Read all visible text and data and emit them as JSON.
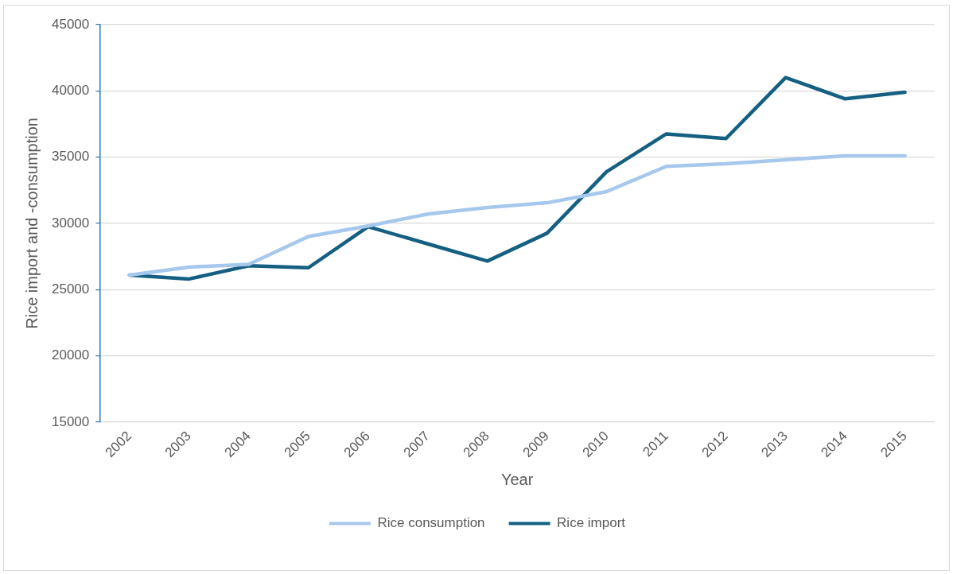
{
  "chart_data": {
    "type": "line",
    "xlabel": "Year",
    "ylabel": "Rice import and -consumption",
    "categories": [
      "2002",
      "2003",
      "2004",
      "2005",
      "2006",
      "2007",
      "2008",
      "2009",
      "2010",
      "2011",
      "2012",
      "2013",
      "2014",
      "2015"
    ],
    "series": [
      {
        "name": "Rice consumption",
        "color": "#a5c8ec",
        "values": [
          26100,
          26700,
          26900,
          29000,
          29800,
          30700,
          31200,
          31550,
          32400,
          34300,
          34500,
          34800,
          35100,
          35100
        ]
      },
      {
        "name": "Rice import",
        "color": "#156082",
        "values": [
          26100,
          25800,
          26800,
          26650,
          29750,
          28450,
          27150,
          29250,
          33900,
          36750,
          36400,
          41000,
          39400,
          39900
        ]
      }
    ],
    "ylim": [
      15000,
      45000
    ],
    "yticks": [
      15000,
      20000,
      25000,
      30000,
      35000,
      40000,
      45000
    ],
    "grid": "y",
    "legend": "bottom",
    "marker": "none",
    "line_style": "solid"
  }
}
